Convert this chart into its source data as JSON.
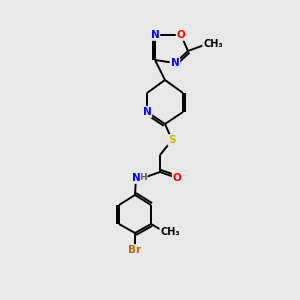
{
  "bg_color": "#e8e8e8",
  "atom_colors": {
    "C": "#000000",
    "N": "#0000ff",
    "O": "#ff0000",
    "S": "#ccbb00",
    "Br": "#cc6600",
    "H": "#555555"
  },
  "bond_color": "#000000",
  "font_size": 7.5,
  "lw": 1.4,
  "off": 2.2
}
